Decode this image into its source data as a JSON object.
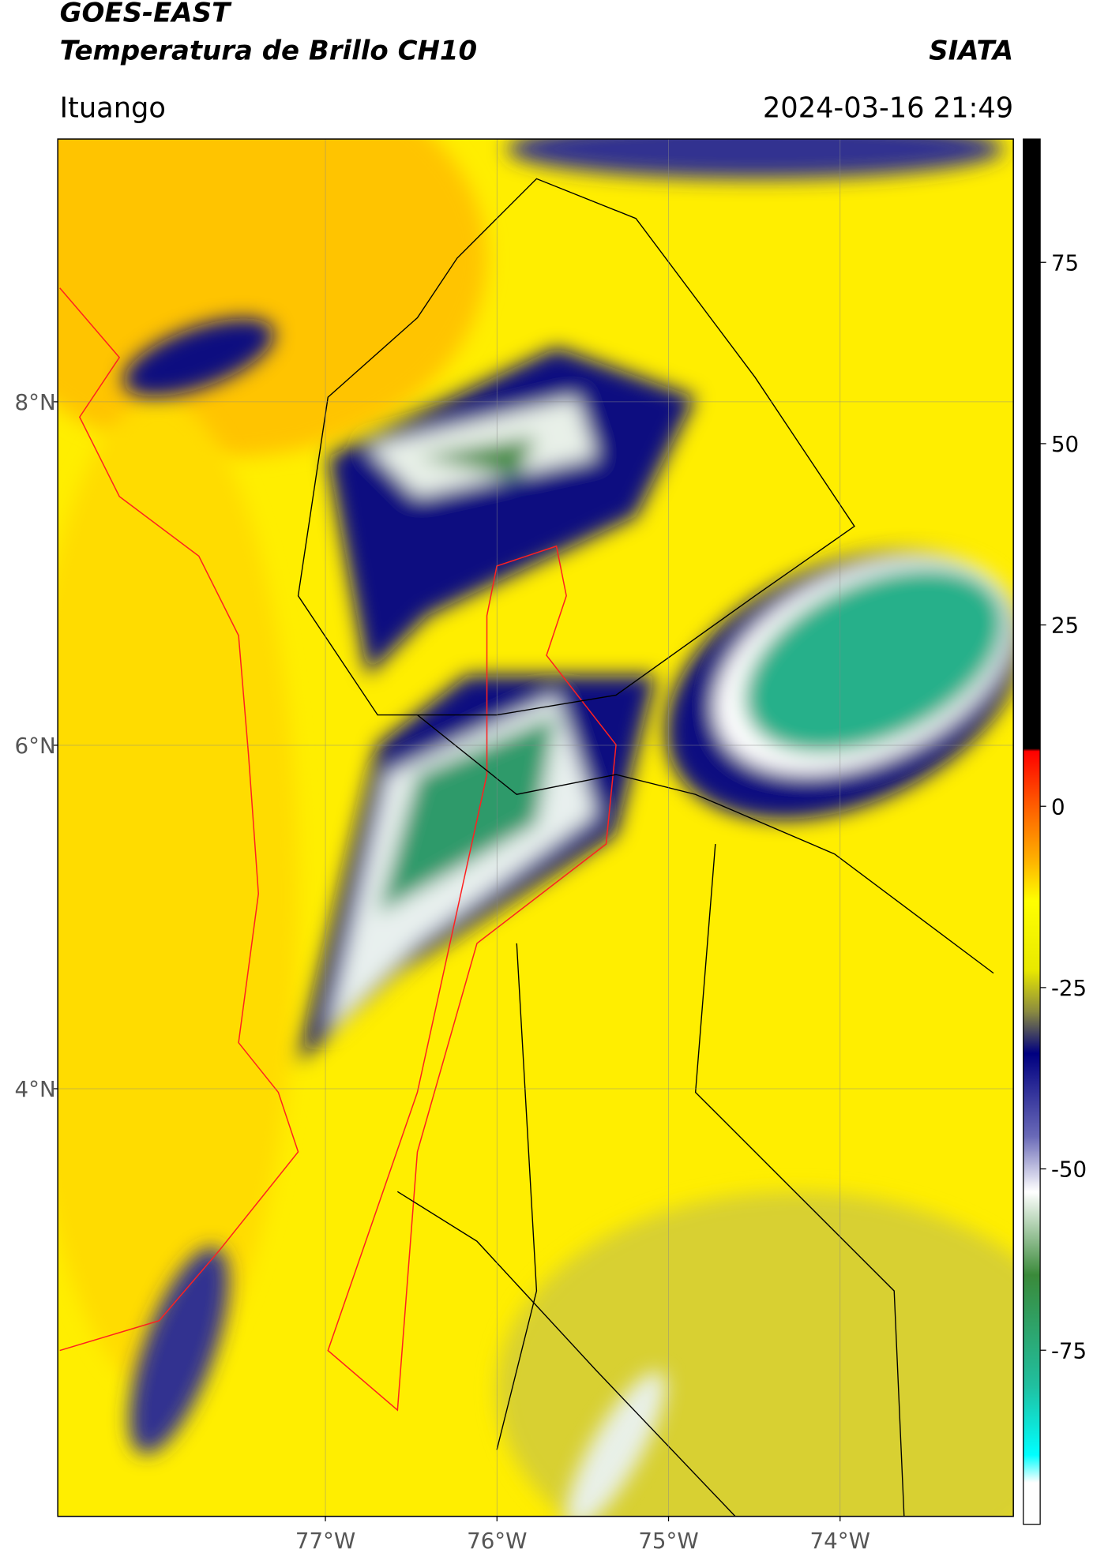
{
  "header": {
    "title": "GOES-EAST",
    "subtitle": "Temperatura de Brillo CH10",
    "agency": "SIATA",
    "region": "Ituango",
    "datetime": "2024-03-16 21:49"
  },
  "map": {
    "xlim": [
      -78.56,
      -72.99
    ],
    "ylim": [
      1.51,
      9.53
    ],
    "xticks": [
      {
        "value": -77,
        "label": "77°W"
      },
      {
        "value": -76,
        "label": "76°W"
      },
      {
        "value": -75,
        "label": "75°W"
      },
      {
        "value": -74,
        "label": "74°W"
      }
    ],
    "yticks": [
      {
        "value": 8,
        "label": "8°N"
      },
      {
        "value": 6,
        "label": "6°N"
      },
      {
        "value": 4,
        "label": "4°N"
      }
    ]
  },
  "colorbar": {
    "lim": [
      -99,
      92
    ],
    "ticks": [
      75,
      50,
      25,
      0,
      -25,
      -50,
      -75
    ]
  }
}
